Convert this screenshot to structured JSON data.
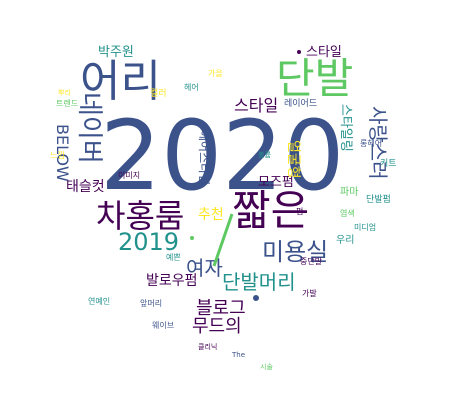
{
  "image_type": "word-cloud",
  "shape": "heart",
  "palette": [
    "#440154",
    "#3b528b",
    "#21918c",
    "#5ec962",
    "#fde725"
  ],
  "words": [
    {
      "text": "2020",
      "color": "#3b528b"
    },
    {
      "text": "단발",
      "color": "#5ec962"
    },
    {
      "text": "어리",
      "color": "#3b528b"
    },
    {
      "text": "짧은",
      "color": "#440154"
    },
    {
      "text": "차홍룸",
      "color": "#440154"
    },
    {
      "text": "2019",
      "color": "#21918c"
    },
    {
      "text": "미용실",
      "color": "#3b528b"
    },
    {
      "text": "단발머리",
      "color": "#21918c"
    },
    {
      "text": "여자",
      "color": "#3b528b"
    },
    {
      "text": "블로그",
      "color": "#440154"
    },
    {
      "text": "무드의",
      "color": "#440154"
    },
    {
      "text": "발로우펌",
      "color": "#440154"
    },
    {
      "text": "네이버",
      "color": "#3b528b"
    },
    {
      "text": "BELOW",
      "color": "#3b528b"
    },
    {
      "text": "태슬컷",
      "color": "#440154"
    },
    {
      "text": "박주원",
      "color": "#21918c"
    },
    {
      "text": "스타일",
      "color": "#440154"
    },
    {
      "text": "스타일",
      "color": "#440154"
    },
    {
      "text": "사랑스러",
      "color": "#3b528b"
    },
    {
      "text": "스타일링",
      "color": "#21918c"
    },
    {
      "text": "모즈펌",
      "color": "#440154"
    },
    {
      "text": "추천",
      "color": "#fde725"
    },
    {
      "text": "얼굴형",
      "color": "#fde725"
    },
    {
      "text": "헤어스타일",
      "color": "#3b528b"
    },
    {
      "text": "우리",
      "color": "#21918c"
    },
    {
      "text": "파마",
      "color": "#5ec962"
    },
    {
      "text": "컬러",
      "color": "#fde725"
    },
    {
      "text": "커트",
      "color": "#21918c"
    },
    {
      "text": "단발펌",
      "color": "#21918c"
    },
    {
      "text": "이미지",
      "color": "#440154"
    },
    {
      "text": "레이어드",
      "color": "#3b528b"
    },
    {
      "text": "트렌드",
      "color": "#5ec962"
    },
    {
      "text": "가을",
      "color": "#fde725"
    },
    {
      "text": "헤어",
      "color": "#21918c"
    },
    {
      "text": "롱헤어",
      "color": "#3b528b"
    },
    {
      "text": "펌",
      "color": "#440154"
    },
    {
      "text": "염색",
      "color": "#5ec962"
    },
    {
      "text": "연예인",
      "color": "#21918c"
    },
    {
      "text": "중단발",
      "color": "#440154"
    },
    {
      "text": "앞머리",
      "color": "#3b528b"
    },
    {
      "text": "느낌",
      "color": "#fde725"
    },
    {
      "text": "예쁜",
      "color": "#21918c"
    },
    {
      "text": "The",
      "color": "#3b528b"
    },
    {
      "text": "가발",
      "color": "#440154"
    },
    {
      "text": "시술",
      "color": "#5ec962"
    },
    {
      "text": "미디엄",
      "color": "#21918c"
    },
    {
      "text": "웨이브",
      "color": "#3b528b"
    },
    {
      "text": "클리닉",
      "color": "#440154"
    },
    {
      "text": "뿌리",
      "color": "#fde725"
    },
    {
      "text": "볼륨",
      "color": "#21918c"
    }
  ]
}
